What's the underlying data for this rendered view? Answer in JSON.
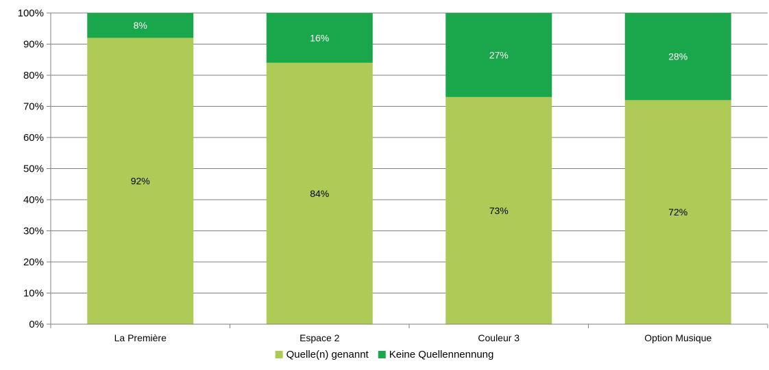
{
  "chart_data": {
    "type": "bar",
    "stacked": true,
    "categories": [
      "La Première",
      "Espace 2",
      "Couleur 3",
      "Option Musique"
    ],
    "series": [
      {
        "name": "Quelle(n) genannt",
        "values": [
          92,
          84,
          73,
          72
        ],
        "labels": [
          "92%",
          "84%",
          "73%",
          "72%"
        ],
        "color": "#afcb57",
        "label_color": "#000000"
      },
      {
        "name": "Keine Quellennennung",
        "values": [
          8,
          16,
          27,
          28
        ],
        "labels": [
          "8%",
          "16%",
          "27%",
          "28%"
        ],
        "color": "#1aa64a",
        "label_color": "#ffffff"
      }
    ],
    "ylim": [
      0,
      100
    ],
    "y_ticks": [
      0,
      10,
      20,
      30,
      40,
      50,
      60,
      70,
      80,
      90,
      100
    ],
    "y_tick_labels": [
      "0%",
      "10%",
      "20%",
      "30%",
      "40%",
      "50%",
      "60%",
      "70%",
      "80%",
      "90%",
      "100%"
    ],
    "grid": true,
    "gridline_color": "#7f7f7f",
    "legend_position": "bottom-center"
  }
}
